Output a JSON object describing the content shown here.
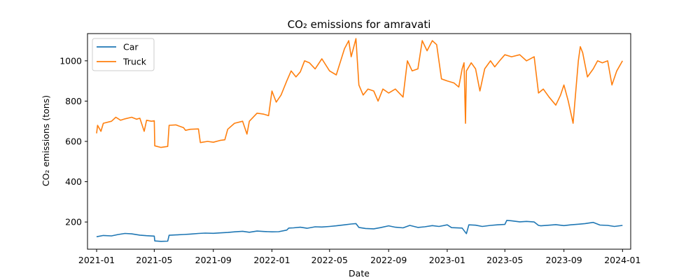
{
  "chart_data": {
    "type": "line",
    "title": "CO₂ emissions for amravati",
    "xlabel": "Date",
    "ylabel": "CO₂ emissions (tons)",
    "xlim": [
      "2020-12-13",
      "2024-01-18"
    ],
    "ylim": [
      65,
      1135
    ],
    "x_ticks": [
      "2021-01",
      "2021-05",
      "2021-09",
      "2022-01",
      "2022-05",
      "2022-09",
      "2023-01",
      "2023-05",
      "2023-09",
      "2024-01"
    ],
    "y_ticks": [
      200,
      400,
      600,
      800,
      1000
    ],
    "grid": false,
    "legend_position": "top-left",
    "series": [
      {
        "name": "Car",
        "color": "#1f77b4",
        "points": [
          [
            "2021-01-01",
            127
          ],
          [
            "2021-01-15",
            133
          ],
          [
            "2021-02-01",
            131
          ],
          [
            "2021-02-15",
            138
          ],
          [
            "2021-03-01",
            143
          ],
          [
            "2021-03-15",
            141
          ],
          [
            "2021-04-01",
            135
          ],
          [
            "2021-04-15",
            132
          ],
          [
            "2021-05-01",
            130
          ],
          [
            "2021-05-02",
            106
          ],
          [
            "2021-05-15",
            104
          ],
          [
            "2021-05-29",
            105
          ],
          [
            "2021-06-01",
            134
          ],
          [
            "2021-06-15",
            136
          ],
          [
            "2021-07-01",
            138
          ],
          [
            "2021-07-15",
            140
          ],
          [
            "2021-08-01",
            143
          ],
          [
            "2021-08-15",
            145
          ],
          [
            "2021-09-01",
            144
          ],
          [
            "2021-09-15",
            146
          ],
          [
            "2021-10-01",
            148
          ],
          [
            "2021-10-15",
            151
          ],
          [
            "2021-11-01",
            154
          ],
          [
            "2021-11-15",
            149
          ],
          [
            "2021-12-01",
            155
          ],
          [
            "2021-12-15",
            153
          ],
          [
            "2022-01-01",
            151
          ],
          [
            "2022-01-15",
            152
          ],
          [
            "2022-02-01",
            160
          ],
          [
            "2022-02-05",
            170
          ],
          [
            "2022-02-15",
            171
          ],
          [
            "2022-03-01",
            174
          ],
          [
            "2022-03-15",
            169
          ],
          [
            "2022-04-01",
            176
          ],
          [
            "2022-04-15",
            175
          ],
          [
            "2022-05-01",
            178
          ],
          [
            "2022-05-15",
            181
          ],
          [
            "2022-06-01",
            186
          ],
          [
            "2022-06-15",
            190
          ],
          [
            "2022-06-25",
            192
          ],
          [
            "2022-07-01",
            173
          ],
          [
            "2022-07-15",
            168
          ],
          [
            "2022-08-01",
            166
          ],
          [
            "2022-08-15",
            172
          ],
          [
            "2022-09-01",
            181
          ],
          [
            "2022-09-15",
            174
          ],
          [
            "2022-10-01",
            171
          ],
          [
            "2022-10-15",
            183
          ],
          [
            "2022-11-01",
            173
          ],
          [
            "2022-11-15",
            176
          ],
          [
            "2022-12-01",
            182
          ],
          [
            "2022-12-15",
            178
          ],
          [
            "2023-01-01",
            186
          ],
          [
            "2023-01-10",
            172
          ],
          [
            "2023-02-01",
            170
          ],
          [
            "2023-02-10",
            142
          ],
          [
            "2023-02-15",
            186
          ],
          [
            "2023-03-01",
            184
          ],
          [
            "2023-03-15",
            178
          ],
          [
            "2023-04-01",
            183
          ],
          [
            "2023-04-15",
            186
          ],
          [
            "2023-05-01",
            188
          ],
          [
            "2023-05-05",
            208
          ],
          [
            "2023-05-15",
            206
          ],
          [
            "2023-06-01",
            201
          ],
          [
            "2023-06-15",
            203
          ],
          [
            "2023-07-01",
            200
          ],
          [
            "2023-07-10",
            183
          ],
          [
            "2023-07-15",
            181
          ],
          [
            "2023-08-01",
            184
          ],
          [
            "2023-08-15",
            187
          ],
          [
            "2023-09-01",
            182
          ],
          [
            "2023-09-15",
            186
          ],
          [
            "2023-10-01",
            189
          ],
          [
            "2023-10-15",
            192
          ],
          [
            "2023-11-01",
            198
          ],
          [
            "2023-11-15",
            185
          ],
          [
            "2023-12-01",
            183
          ],
          [
            "2023-12-15",
            178
          ],
          [
            "2024-01-01",
            183
          ]
        ]
      },
      {
        "name": "Truck",
        "color": "#ff7f0e",
        "points": [
          [
            "2021-01-01",
            640
          ],
          [
            "2021-01-03",
            680
          ],
          [
            "2021-01-10",
            650
          ],
          [
            "2021-01-15",
            690
          ],
          [
            "2021-02-01",
            700
          ],
          [
            "2021-02-10",
            720
          ],
          [
            "2021-02-20",
            705
          ],
          [
            "2021-03-01",
            712
          ],
          [
            "2021-03-15",
            720
          ],
          [
            "2021-03-25",
            710
          ],
          [
            "2021-04-01",
            715
          ],
          [
            "2021-04-10",
            650
          ],
          [
            "2021-04-15",
            705
          ],
          [
            "2021-04-25",
            700
          ],
          [
            "2021-05-01",
            702
          ],
          [
            "2021-05-02",
            578
          ],
          [
            "2021-05-15",
            570
          ],
          [
            "2021-05-29",
            575
          ],
          [
            "2021-06-01",
            680
          ],
          [
            "2021-06-15",
            682
          ],
          [
            "2021-07-01",
            668
          ],
          [
            "2021-07-05",
            655
          ],
          [
            "2021-07-15",
            660
          ],
          [
            "2021-08-01",
            662
          ],
          [
            "2021-08-05",
            594
          ],
          [
            "2021-08-20",
            600
          ],
          [
            "2021-09-01",
            596
          ],
          [
            "2021-09-15",
            605
          ],
          [
            "2021-09-25",
            608
          ],
          [
            "2021-10-01",
            660
          ],
          [
            "2021-10-15",
            690
          ],
          [
            "2021-11-01",
            700
          ],
          [
            "2021-11-10",
            636
          ],
          [
            "2021-11-15",
            700
          ],
          [
            "2021-12-01",
            740
          ],
          [
            "2021-12-15",
            735
          ],
          [
            "2021-12-25",
            728
          ],
          [
            "2022-01-01",
            850
          ],
          [
            "2022-01-10",
            795
          ],
          [
            "2022-01-20",
            830
          ],
          [
            "2022-02-01",
            900
          ],
          [
            "2022-02-10",
            950
          ],
          [
            "2022-02-20",
            920
          ],
          [
            "2022-03-01",
            945
          ],
          [
            "2022-03-10",
            1000
          ],
          [
            "2022-03-20",
            990
          ],
          [
            "2022-04-01",
            960
          ],
          [
            "2022-04-15",
            1010
          ],
          [
            "2022-05-01",
            950
          ],
          [
            "2022-05-15",
            930
          ],
          [
            "2022-06-01",
            1060
          ],
          [
            "2022-06-10",
            1100
          ],
          [
            "2022-06-15",
            1020
          ],
          [
            "2022-06-25",
            1110
          ],
          [
            "2022-07-01",
            880
          ],
          [
            "2022-07-10",
            830
          ],
          [
            "2022-07-20",
            860
          ],
          [
            "2022-08-01",
            850
          ],
          [
            "2022-08-10",
            800
          ],
          [
            "2022-08-20",
            860
          ],
          [
            "2022-09-01",
            840
          ],
          [
            "2022-09-15",
            860
          ],
          [
            "2022-10-01",
            820
          ],
          [
            "2022-10-10",
            1000
          ],
          [
            "2022-10-20",
            950
          ],
          [
            "2022-11-01",
            960
          ],
          [
            "2022-11-10",
            1100
          ],
          [
            "2022-11-20",
            1050
          ],
          [
            "2022-12-01",
            1100
          ],
          [
            "2022-12-10",
            1080
          ],
          [
            "2022-12-20",
            910
          ],
          [
            "2023-01-01",
            900
          ],
          [
            "2023-01-15",
            890
          ],
          [
            "2023-01-25",
            870
          ],
          [
            "2023-02-01",
            960
          ],
          [
            "2023-02-05",
            990
          ],
          [
            "2023-02-08",
            690
          ],
          [
            "2023-02-10",
            950
          ],
          [
            "2023-02-20",
            990
          ],
          [
            "2023-03-01",
            960
          ],
          [
            "2023-03-10",
            850
          ],
          [
            "2023-03-20",
            960
          ],
          [
            "2023-04-01",
            1000
          ],
          [
            "2023-04-10",
            970
          ],
          [
            "2023-04-20",
            1000
          ],
          [
            "2023-05-01",
            1030
          ],
          [
            "2023-05-15",
            1020
          ],
          [
            "2023-06-01",
            1030
          ],
          [
            "2023-06-15",
            1000
          ],
          [
            "2023-07-01",
            1020
          ],
          [
            "2023-07-10",
            840
          ],
          [
            "2023-07-20",
            860
          ],
          [
            "2023-08-01",
            820
          ],
          [
            "2023-08-15",
            780
          ],
          [
            "2023-08-25",
            830
          ],
          [
            "2023-09-01",
            880
          ],
          [
            "2023-09-10",
            800
          ],
          [
            "2023-09-20",
            690
          ],
          [
            "2023-10-01",
            1000
          ],
          [
            "2023-10-05",
            1070
          ],
          [
            "2023-10-10",
            1040
          ],
          [
            "2023-10-20",
            920
          ],
          [
            "2023-11-01",
            960
          ],
          [
            "2023-11-10",
            1000
          ],
          [
            "2023-11-20",
            990
          ],
          [
            "2023-12-01",
            1000
          ],
          [
            "2023-12-10",
            880
          ],
          [
            "2023-12-20",
            950
          ],
          [
            "2024-01-01",
            1000
          ]
        ]
      }
    ]
  }
}
